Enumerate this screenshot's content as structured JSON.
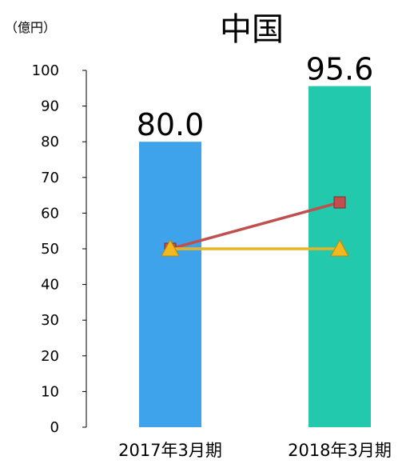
{
  "chart_data": {
    "type": "bar",
    "title": "中国",
    "unit_label": "（億円）",
    "categories": [
      "2017年3月期",
      "2018年3月期"
    ],
    "values": [
      80.0,
      95.6
    ],
    "data_labels": [
      "80.0",
      "95.6"
    ],
    "bar_colors": [
      "#3ea3ea",
      "#22c9ac"
    ],
    "ylim": [
      0,
      100
    ],
    "yticks": [
      0,
      10,
      20,
      30,
      40,
      50,
      60,
      70,
      80,
      90,
      100
    ],
    "ytick_labels": [
      "0",
      "10",
      "20",
      "30",
      "40",
      "50",
      "60",
      "70",
      "80",
      "90",
      "100"
    ],
    "grid": false,
    "line_series": [
      {
        "values": [
          50,
          63
        ],
        "color": "#c0504d",
        "marker": "square"
      },
      {
        "values": [
          50,
          50
        ],
        "color": "#e8b424",
        "marker": "triangle"
      }
    ]
  }
}
